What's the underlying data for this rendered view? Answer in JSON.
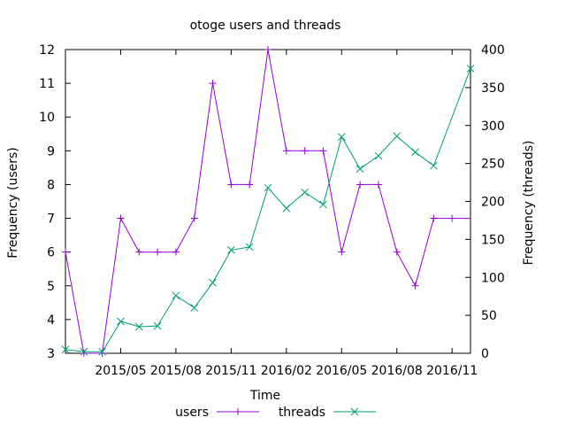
{
  "chart_data": {
    "type": "line",
    "title": "otoge users and threads",
    "xlabel": "Time",
    "ylabel_left": "Frequency (users)",
    "ylabel_right": "Frequency (threads)",
    "x_tick_labels": [
      "2015/05",
      "2015/08",
      "2015/11",
      "2016/02",
      "2016/05",
      "2016/08",
      "2016/11"
    ],
    "x": [
      "2015/02",
      "2015/03",
      "2015/04",
      "2015/05",
      "2015/06",
      "2015/07",
      "2015/08",
      "2015/09",
      "2015/10",
      "2015/11",
      "2015/12",
      "2016/01",
      "2016/02",
      "2016/03",
      "2016/04",
      "2016/05",
      "2016/06",
      "2016/07",
      "2016/08",
      "2016/09",
      "2016/10",
      "2016/11",
      "2016/12"
    ],
    "xlim": [
      "2015/02",
      "2016/12"
    ],
    "ylim_left": [
      3,
      12
    ],
    "ylim_right": [
      0,
      400
    ],
    "yticks_left": [
      3,
      4,
      5,
      6,
      7,
      8,
      9,
      10,
      11,
      12
    ],
    "yticks_right": [
      0,
      50,
      100,
      150,
      200,
      250,
      300,
      350,
      400
    ],
    "series": [
      {
        "name": "users",
        "axis": "left",
        "marker": "+",
        "color": "#9400d3",
        "values": [
          6,
          3,
          3,
          7,
          6,
          6,
          6,
          7,
          11,
          8,
          8,
          12,
          9,
          9,
          9,
          6,
          8,
          8,
          6,
          5,
          7,
          7,
          null
        ]
      },
      {
        "name": "threads",
        "axis": "right",
        "marker": "x",
        "color": "#009e73",
        "values": [
          5,
          2,
          2,
          42,
          35,
          36,
          76,
          60,
          93,
          136,
          140,
          218,
          191,
          212,
          196,
          285,
          243,
          260,
          286,
          265,
          247,
          null,
          375
        ]
      }
    ],
    "users_extend_to": 7,
    "legend_position": "bottom-center",
    "grid": false
  }
}
